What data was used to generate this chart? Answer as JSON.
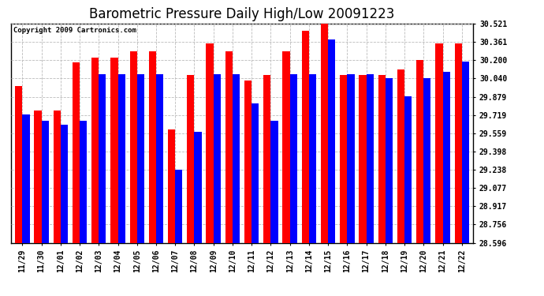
{
  "title": "Barometric Pressure Daily High/Low 20091223",
  "copyright": "Copyright 2009 Cartronics.com",
  "dates": [
    "11/29",
    "11/30",
    "12/01",
    "12/02",
    "12/03",
    "12/04",
    "12/05",
    "12/06",
    "12/07",
    "12/08",
    "12/09",
    "12/10",
    "12/11",
    "12/12",
    "12/13",
    "12/14",
    "12/15",
    "12/16",
    "12/17",
    "12/18",
    "12/19",
    "12/20",
    "12/21",
    "12/22"
  ],
  "highs": [
    29.97,
    29.76,
    29.76,
    30.18,
    30.22,
    30.22,
    30.28,
    30.28,
    29.59,
    30.07,
    30.35,
    30.28,
    30.02,
    30.07,
    30.28,
    30.46,
    30.52,
    30.07,
    30.07,
    30.07,
    30.12,
    30.2,
    30.35,
    30.35
  ],
  "lows": [
    29.72,
    29.67,
    29.63,
    29.67,
    30.08,
    30.08,
    30.08,
    30.08,
    29.24,
    29.57,
    30.08,
    30.08,
    29.82,
    29.67,
    30.08,
    30.08,
    30.38,
    30.08,
    30.08,
    30.04,
    29.88,
    30.04,
    30.1,
    30.19
  ],
  "yticks": [
    28.596,
    28.756,
    28.917,
    29.077,
    29.238,
    29.398,
    29.559,
    29.719,
    29.879,
    30.04,
    30.2,
    30.361,
    30.521
  ],
  "ymin": 28.596,
  "ymax": 30.521,
  "bar_width": 0.38,
  "high_color": "#ff0000",
  "low_color": "#0000ff",
  "bg_color": "#ffffff",
  "plot_bg_color": "#ffffff",
  "grid_color": "#bbbbbb",
  "title_fontsize": 12,
  "tick_fontsize": 7
}
